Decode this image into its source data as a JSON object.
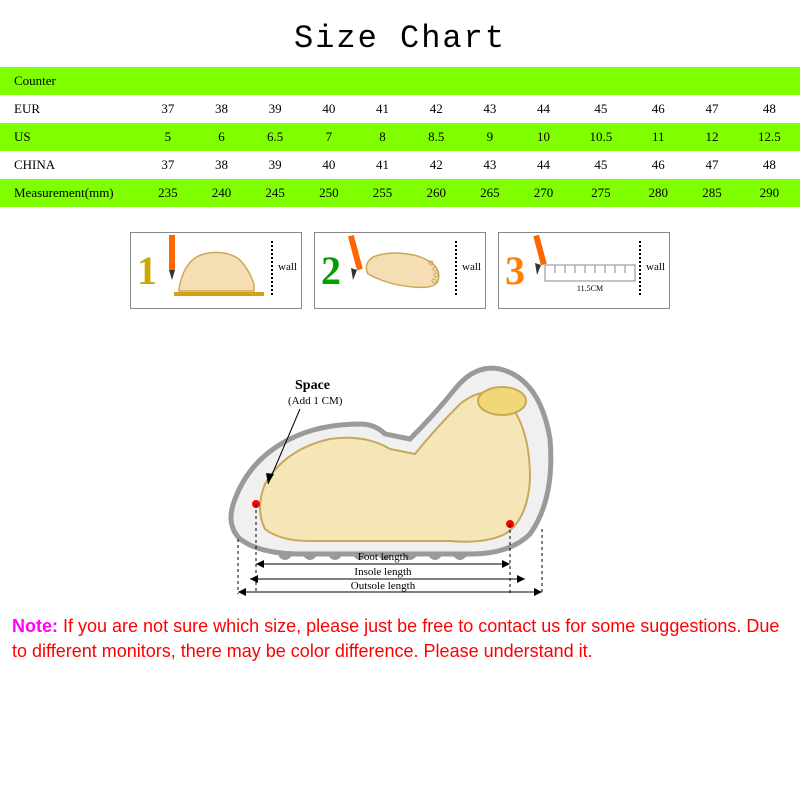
{
  "title": "Size Chart",
  "table": {
    "columns_count": 12,
    "row_bg_colors": {
      "green": "#7FFF00",
      "white": "#ffffff"
    },
    "rows": [
      {
        "bg": "green",
        "label": "Counter",
        "cells": [
          "",
          "",
          "",
          "",
          "",
          "",
          "",
          "",
          "",
          "",
          "",
          ""
        ]
      },
      {
        "bg": "white",
        "label": "EUR",
        "cells": [
          "37",
          "38",
          "39",
          "40",
          "41",
          "42",
          "43",
          "44",
          "45",
          "46",
          "47",
          "48"
        ]
      },
      {
        "bg": "green",
        "label": "US",
        "cells": [
          "5",
          "6",
          "6.5",
          "7",
          "8",
          "8.5",
          "9",
          "10",
          "10.5",
          "11",
          "12",
          "12.5"
        ]
      },
      {
        "bg": "white",
        "label": "CHINA",
        "cells": [
          "37",
          "38",
          "39",
          "40",
          "41",
          "42",
          "43",
          "44",
          "45",
          "46",
          "47",
          "48"
        ]
      },
      {
        "bg": "green",
        "label": "Measurement(mm)",
        "cells": [
          "235",
          "240",
          "245",
          "250",
          "255",
          "260",
          "265",
          "270",
          "275",
          "280",
          "285",
          "290"
        ]
      }
    ]
  },
  "steps": {
    "numbers": [
      "1",
      "2",
      "3"
    ],
    "number_colors": [
      "#c9a800",
      "#00a000",
      "#ff8000"
    ],
    "wall_label": "wall",
    "ruler_label": "11.5CM"
  },
  "shoe": {
    "space_title": "Space",
    "space_sub": "(Add 1 CM)",
    "labels": [
      "Foot length",
      "Insole length",
      "Outsole length"
    ]
  },
  "note": {
    "label": "Note:",
    "text": " If you are not sure which size, please just be free to contact us for some suggestions. Due to different monitors, there may be color difference. Please understand it."
  },
  "colors": {
    "title": "#000000",
    "note_label": "#ff00ff",
    "note_text": "#ff0000",
    "foot_fill": "#f5deb3",
    "foot_stroke": "#caa85a",
    "pencil": "#ff6600",
    "shoe_outline": "#9a9a9a",
    "shoe_fill": "#f0f0f0",
    "shoe_inner": "#f5e6b8",
    "arrow": "#000000"
  }
}
